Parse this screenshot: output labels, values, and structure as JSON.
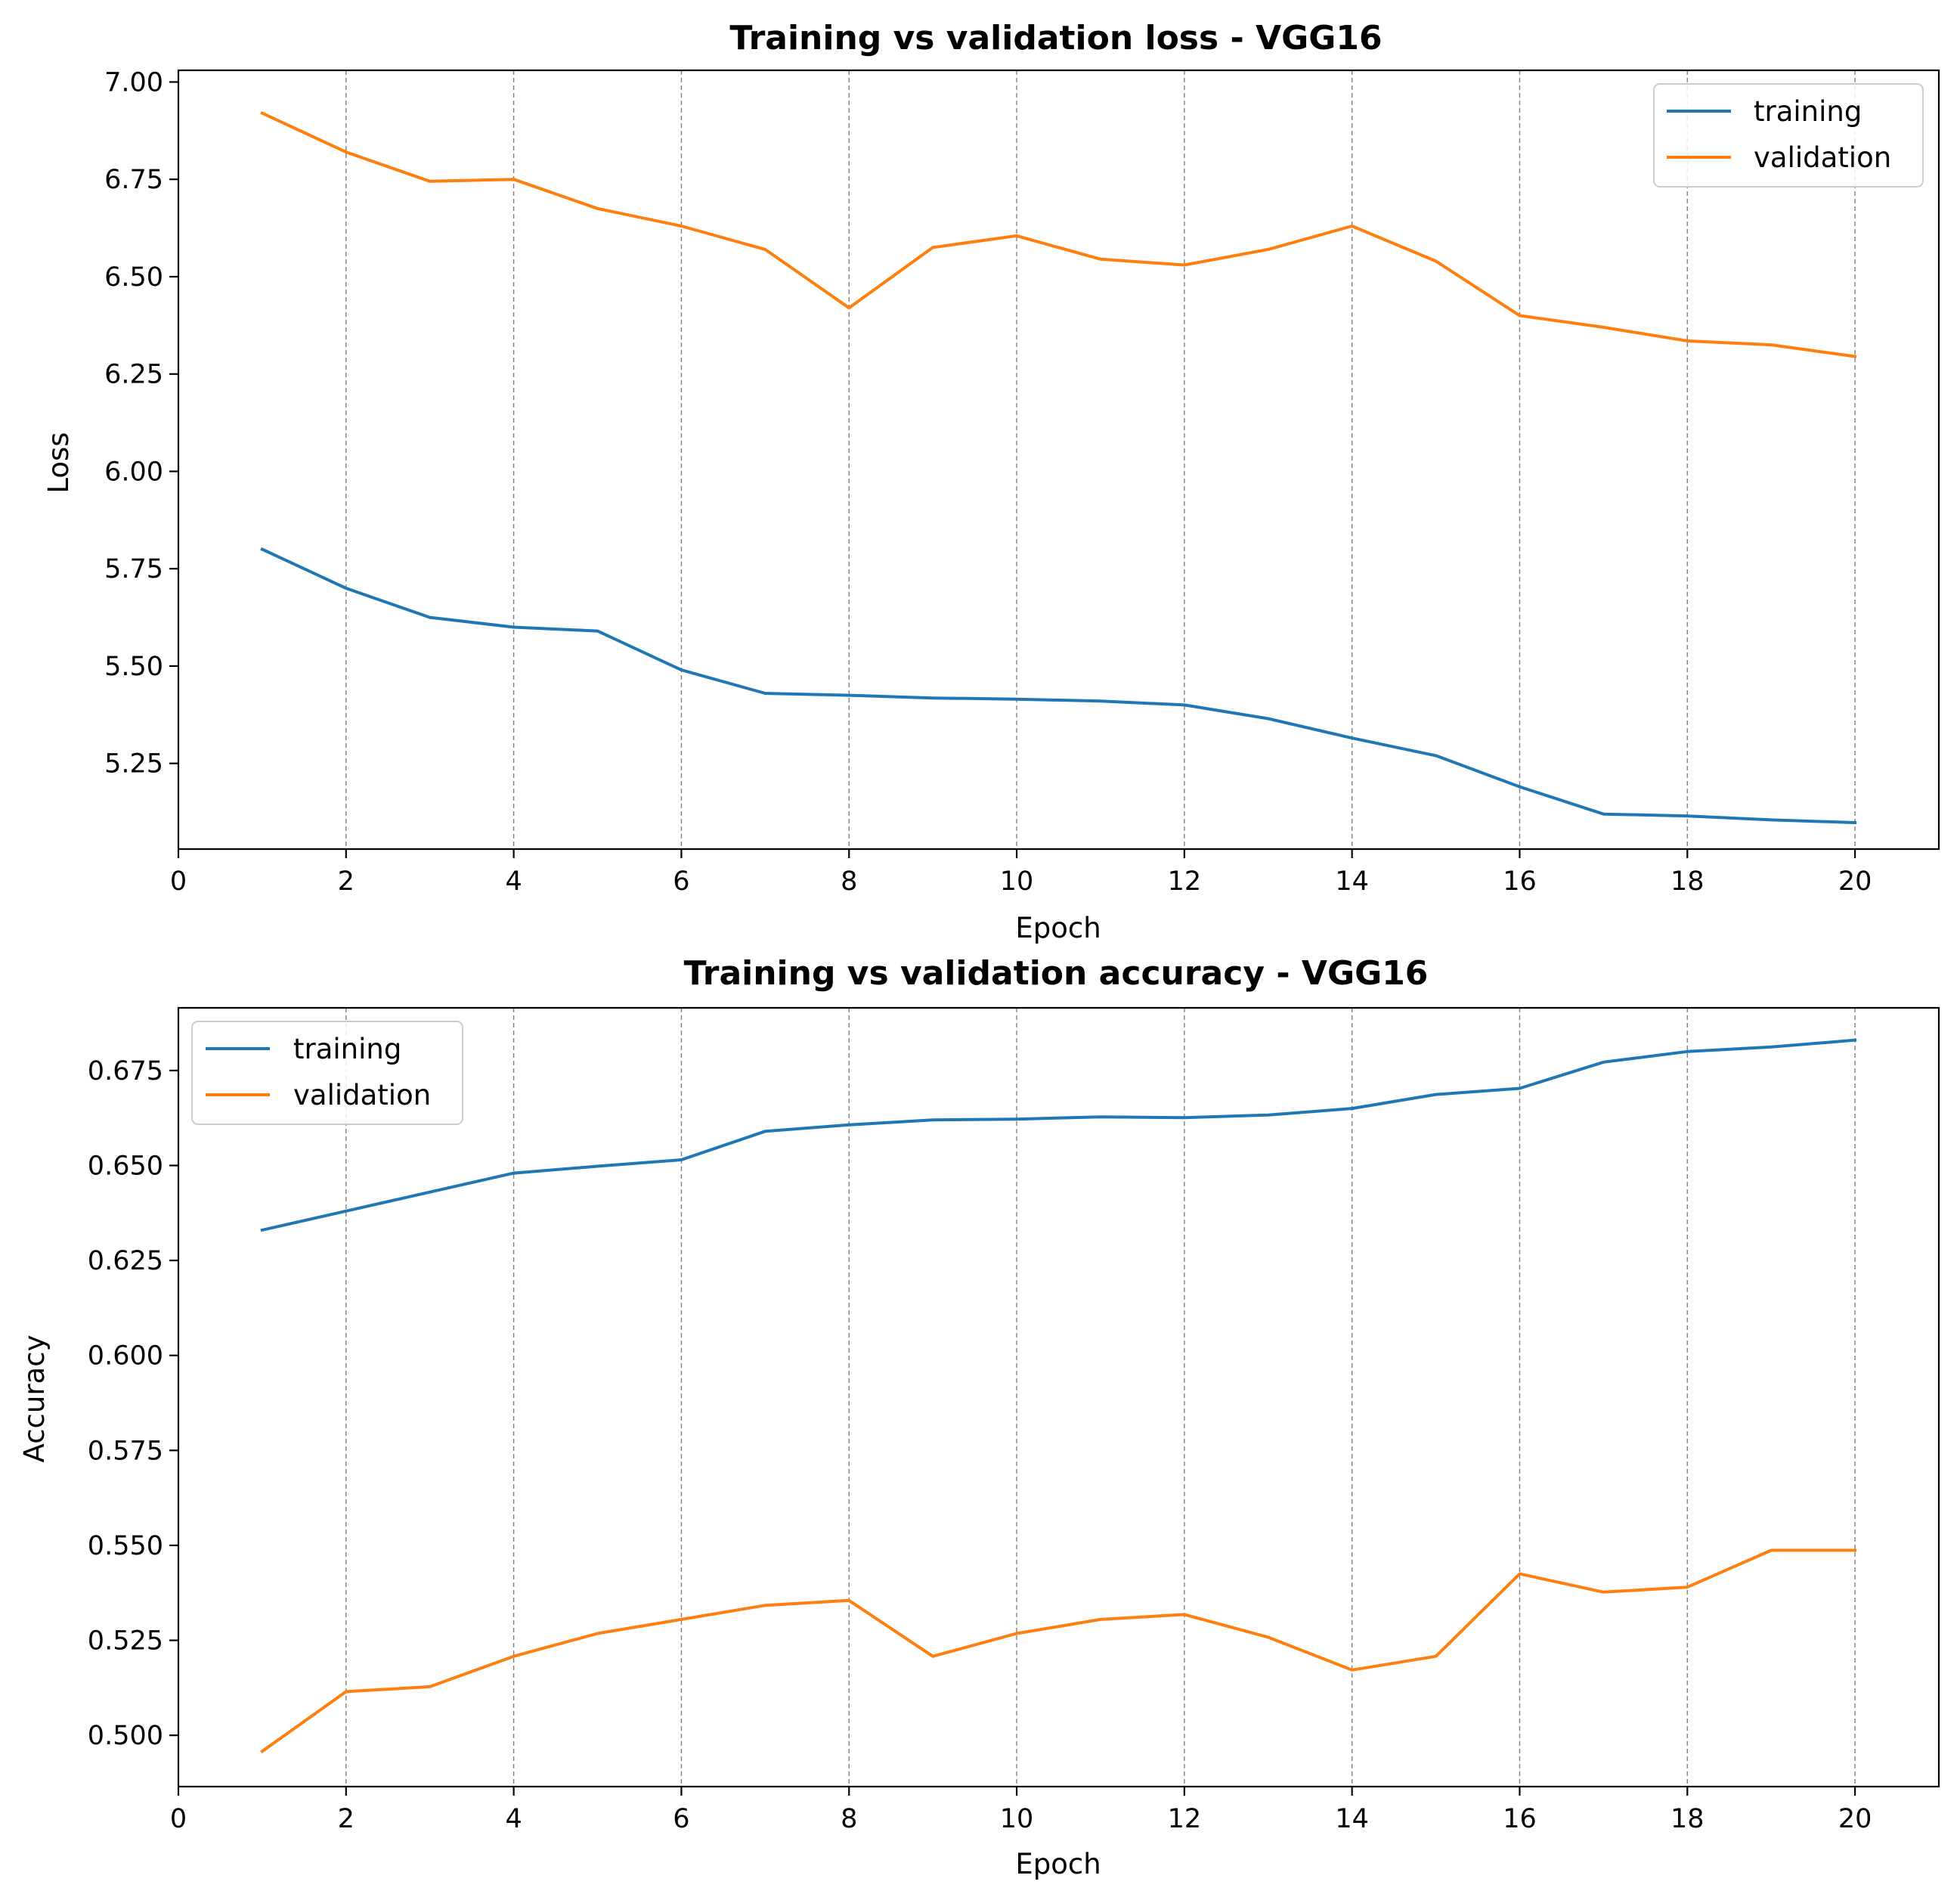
{
  "chart_data": [
    {
      "type": "line",
      "title": "Training vs validation loss - VGG16",
      "xlabel": "Epoch",
      "ylabel": "Loss",
      "xlim": [
        0,
        21
      ],
      "ylim": [
        5.03,
        7.03
      ],
      "xticks": [
        0,
        2,
        4,
        6,
        8,
        10,
        12,
        14,
        16,
        18,
        20
      ],
      "yticks": [
        "5.25",
        "5.50",
        "5.75",
        "6.00",
        "6.25",
        "6.50",
        "6.75",
        "7.00"
      ],
      "grid": "vertical dashed",
      "legend_position": "top-right",
      "x": [
        1,
        2,
        3,
        4,
        5,
        6,
        7,
        8,
        9,
        10,
        11,
        12,
        13,
        14,
        15,
        16,
        17,
        18,
        19,
        20
      ],
      "series": [
        {
          "name": "training",
          "color": "#1f77b4",
          "values": [
            5.8,
            5.7,
            5.625,
            5.6,
            5.59,
            5.49,
            5.43,
            5.425,
            5.418,
            5.415,
            5.41,
            5.4,
            5.365,
            5.315,
            5.27,
            5.19,
            5.12,
            5.115,
            5.105,
            5.098
          ]
        },
        {
          "name": "validation",
          "color": "#ff7f0e",
          "values": [
            6.92,
            6.82,
            6.745,
            6.75,
            6.675,
            6.63,
            6.57,
            6.42,
            6.575,
            6.605,
            6.545,
            6.53,
            6.57,
            6.63,
            6.54,
            6.4,
            6.37,
            6.335,
            6.325,
            6.295
          ]
        }
      ]
    },
    {
      "type": "line",
      "title": "Training vs validation accuracy - VGG16",
      "xlabel": "Epoch",
      "ylabel": "Accuracy",
      "xlim": [
        0,
        21
      ],
      "ylim": [
        0.4865,
        0.6915
      ],
      "xticks": [
        0,
        2,
        4,
        6,
        8,
        10,
        12,
        14,
        16,
        18,
        20
      ],
      "yticks": [
        "0.500",
        "0.525",
        "0.550",
        "0.575",
        "0.600",
        "0.625",
        "0.650",
        "0.675"
      ],
      "grid": "vertical dashed",
      "legend_position": "top-left",
      "x": [
        1,
        2,
        3,
        4,
        5,
        6,
        7,
        8,
        9,
        10,
        11,
        12,
        13,
        14,
        15,
        16,
        17,
        18,
        19,
        20
      ],
      "series": [
        {
          "name": "training",
          "color": "#1f77b4",
          "values": [
            0.633,
            0.638,
            0.643,
            0.648,
            0.6498,
            0.6515,
            0.659,
            0.6607,
            0.662,
            0.6622,
            0.6628,
            0.6626,
            0.6633,
            0.665,
            0.6687,
            0.6703,
            0.6772,
            0.68,
            0.6812,
            0.683
          ]
        },
        {
          "name": "validation",
          "color": "#ff7f0e",
          "values": [
            0.4958,
            0.5115,
            0.5128,
            0.5208,
            0.5268,
            0.5305,
            0.5342,
            0.5355,
            0.5208,
            0.5268,
            0.5305,
            0.5318,
            0.5258,
            0.5172,
            0.5208,
            0.5425,
            0.5377,
            0.539,
            0.5487,
            0.5487
          ]
        }
      ]
    }
  ]
}
